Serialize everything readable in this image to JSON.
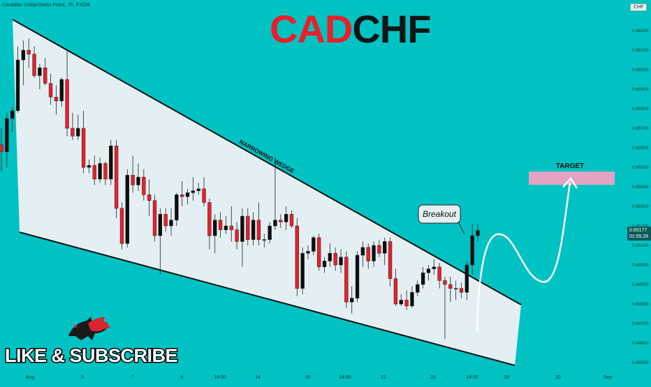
{
  "header": {
    "symbol_info": "Canadian Dollar/Swiss Franc, 7h, FXCM",
    "title_part1": "CAD",
    "title_part2": "CHF",
    "currency_badge": "CHF"
  },
  "price_tag": {
    "price": "0.65177",
    "countdown": "01:55:26"
  },
  "annotations": {
    "wedge_label": "NARROWING WEDGE",
    "breakout_label": "Breakout",
    "target_label": "TARGET"
  },
  "branding": {
    "subscribe_text": "LIKE & SUBSCRIBE",
    "logo_icon": "bull-bear-icon"
  },
  "colors": {
    "background": "#00c2c2",
    "up_candle": "#0d0d0d",
    "down_candle": "#e8202a",
    "wedge_fill": "#e3eff2",
    "target_zone": "#e3a4c3"
  },
  "chart_data": {
    "type": "candlestick",
    "symbol": "CADCHF",
    "timeframe": "7h",
    "ylim": [
      0.645,
      0.6625
    ],
    "y_ticks": [
      "0.66200",
      "0.66100",
      "0.66000",
      "0.65900",
      "0.65800",
      "0.65700",
      "0.65600",
      "0.65500",
      "0.65400",
      "0.65300",
      "0.65200",
      "0.65100",
      "0.65000",
      "0.64900",
      "0.64800",
      "0.64700",
      "0.64600",
      "0.64500"
    ],
    "x_ticks": [
      "Aug",
      "3",
      "7",
      "9",
      "14:00",
      "14",
      "16",
      "14:00",
      "21",
      "23",
      "14:00",
      "28",
      "30",
      "Sep"
    ],
    "candles": [
      {
        "o": 0.65615,
        "h": 0.657,
        "l": 0.6548,
        "c": 0.6558
      },
      {
        "o": 0.6558,
        "h": 0.6578,
        "l": 0.655,
        "c": 0.6575
      },
      {
        "o": 0.6575,
        "h": 0.6581,
        "l": 0.6568,
        "c": 0.6579
      },
      {
        "o": 0.6579,
        "h": 0.6612,
        "l": 0.6578,
        "c": 0.6605
      },
      {
        "o": 0.6605,
        "h": 0.6615,
        "l": 0.6592,
        "c": 0.661
      },
      {
        "o": 0.661,
        "h": 0.6616,
        "l": 0.6601,
        "c": 0.6608
      },
      {
        "o": 0.6608,
        "h": 0.6612,
        "l": 0.6596,
        "c": 0.6597
      },
      {
        "o": 0.6597,
        "h": 0.6603,
        "l": 0.659,
        "c": 0.6601
      },
      {
        "o": 0.6601,
        "h": 0.6606,
        "l": 0.6592,
        "c": 0.6593
      },
      {
        "o": 0.6593,
        "h": 0.6598,
        "l": 0.6582,
        "c": 0.6586
      },
      {
        "o": 0.6586,
        "h": 0.6592,
        "l": 0.6577,
        "c": 0.6584
      },
      {
        "o": 0.6584,
        "h": 0.6596,
        "l": 0.6581,
        "c": 0.6595
      },
      {
        "o": 0.6595,
        "h": 0.661,
        "l": 0.6566,
        "c": 0.657
      },
      {
        "o": 0.657,
        "h": 0.6578,
        "l": 0.6564,
        "c": 0.6566
      },
      {
        "o": 0.6566,
        "h": 0.6577,
        "l": 0.6564,
        "c": 0.657
      },
      {
        "o": 0.657,
        "h": 0.6579,
        "l": 0.6547,
        "c": 0.655
      },
      {
        "o": 0.655,
        "h": 0.6554,
        "l": 0.6547,
        "c": 0.6551
      },
      {
        "o": 0.6551,
        "h": 0.6556,
        "l": 0.6541,
        "c": 0.6544
      },
      {
        "o": 0.6544,
        "h": 0.6555,
        "l": 0.6542,
        "c": 0.6552
      },
      {
        "o": 0.6552,
        "h": 0.6553,
        "l": 0.6541,
        "c": 0.6544
      },
      {
        "o": 0.6544,
        "h": 0.6564,
        "l": 0.6541,
        "c": 0.6561
      },
      {
        "o": 0.6561,
        "h": 0.6564,
        "l": 0.6524,
        "c": 0.6529
      },
      {
        "o": 0.6529,
        "h": 0.6532,
        "l": 0.6508,
        "c": 0.6511
      },
      {
        "o": 0.6511,
        "h": 0.6549,
        "l": 0.6509,
        "c": 0.6546
      },
      {
        "o": 0.6546,
        "h": 0.6556,
        "l": 0.6537,
        "c": 0.6541
      },
      {
        "o": 0.6541,
        "h": 0.6552,
        "l": 0.6538,
        "c": 0.6545
      },
      {
        "o": 0.6545,
        "h": 0.6549,
        "l": 0.6533,
        "c": 0.6536
      },
      {
        "o": 0.6536,
        "h": 0.6544,
        "l": 0.6525,
        "c": 0.6533
      },
      {
        "o": 0.6533,
        "h": 0.6536,
        "l": 0.6512,
        "c": 0.6515
      },
      {
        "o": 0.6515,
        "h": 0.6529,
        "l": 0.6495,
        "c": 0.6526
      },
      {
        "o": 0.6526,
        "h": 0.6529,
        "l": 0.6517,
        "c": 0.652
      },
      {
        "o": 0.652,
        "h": 0.6529,
        "l": 0.6515,
        "c": 0.6523
      },
      {
        "o": 0.6523,
        "h": 0.6537,
        "l": 0.652,
        "c": 0.6536
      },
      {
        "o": 0.6536,
        "h": 0.6543,
        "l": 0.653,
        "c": 0.6535
      },
      {
        "o": 0.6535,
        "h": 0.6539,
        "l": 0.6531,
        "c": 0.6537
      },
      {
        "o": 0.6537,
        "h": 0.6545,
        "l": 0.6533,
        "c": 0.6538
      },
      {
        "o": 0.6538,
        "h": 0.6542,
        "l": 0.6536,
        "c": 0.6539
      },
      {
        "o": 0.6539,
        "h": 0.6545,
        "l": 0.653,
        "c": 0.6532
      },
      {
        "o": 0.6532,
        "h": 0.6534,
        "l": 0.6508,
        "c": 0.6515
      },
      {
        "o": 0.6515,
        "h": 0.6526,
        "l": 0.6506,
        "c": 0.6523
      },
      {
        "o": 0.6523,
        "h": 0.6527,
        "l": 0.6514,
        "c": 0.6518
      },
      {
        "o": 0.6518,
        "h": 0.6525,
        "l": 0.6516,
        "c": 0.652
      },
      {
        "o": 0.652,
        "h": 0.653,
        "l": 0.6512,
        "c": 0.6518
      },
      {
        "o": 0.6518,
        "h": 0.6522,
        "l": 0.6508,
        "c": 0.6512
      },
      {
        "o": 0.6512,
        "h": 0.6529,
        "l": 0.6499,
        "c": 0.6525
      },
      {
        "o": 0.6525,
        "h": 0.6529,
        "l": 0.651,
        "c": 0.6513
      },
      {
        "o": 0.6513,
        "h": 0.6527,
        "l": 0.651,
        "c": 0.6523
      },
      {
        "o": 0.6523,
        "h": 0.6532,
        "l": 0.651,
        "c": 0.6513
      },
      {
        "o": 0.6513,
        "h": 0.6516,
        "l": 0.6509,
        "c": 0.6513
      },
      {
        "o": 0.6513,
        "h": 0.6522,
        "l": 0.6511,
        "c": 0.652
      },
      {
        "o": 0.652,
        "h": 0.6555,
        "l": 0.6518,
        "c": 0.6523
      },
      {
        "o": 0.6523,
        "h": 0.6526,
        "l": 0.6519,
        "c": 0.6522
      },
      {
        "o": 0.6522,
        "h": 0.653,
        "l": 0.6518,
        "c": 0.6526
      },
      {
        "o": 0.6526,
        "h": 0.6528,
        "l": 0.6519,
        "c": 0.652
      },
      {
        "o": 0.652,
        "h": 0.6524,
        "l": 0.6484,
        "c": 0.6488
      },
      {
        "o": 0.6488,
        "h": 0.6509,
        "l": 0.6485,
        "c": 0.6506
      },
      {
        "o": 0.6506,
        "h": 0.651,
        "l": 0.6503,
        "c": 0.6507
      },
      {
        "o": 0.6507,
        "h": 0.6515,
        "l": 0.6505,
        "c": 0.6514
      },
      {
        "o": 0.6514,
        "h": 0.6516,
        "l": 0.6497,
        "c": 0.6499
      },
      {
        "o": 0.6499,
        "h": 0.6504,
        "l": 0.6496,
        "c": 0.6502
      },
      {
        "o": 0.6502,
        "h": 0.6511,
        "l": 0.6499,
        "c": 0.6506
      },
      {
        "o": 0.6506,
        "h": 0.6509,
        "l": 0.6497,
        "c": 0.65
      },
      {
        "o": 0.65,
        "h": 0.6508,
        "l": 0.6496,
        "c": 0.6504
      },
      {
        "o": 0.6504,
        "h": 0.6507,
        "l": 0.6478,
        "c": 0.6481
      },
      {
        "o": 0.6481,
        "h": 0.6489,
        "l": 0.6475,
        "c": 0.6483
      },
      {
        "o": 0.6483,
        "h": 0.6507,
        "l": 0.6481,
        "c": 0.6505
      },
      {
        "o": 0.6505,
        "h": 0.6512,
        "l": 0.6499,
        "c": 0.6509
      },
      {
        "o": 0.6509,
        "h": 0.6511,
        "l": 0.6498,
        "c": 0.6502
      },
      {
        "o": 0.6502,
        "h": 0.6512,
        "l": 0.6499,
        "c": 0.651
      },
      {
        "o": 0.651,
        "h": 0.6513,
        "l": 0.6504,
        "c": 0.6506
      },
      {
        "o": 0.6506,
        "h": 0.6514,
        "l": 0.65,
        "c": 0.6512
      },
      {
        "o": 0.6512,
        "h": 0.6514,
        "l": 0.6489,
        "c": 0.6493
      },
      {
        "o": 0.6493,
        "h": 0.6498,
        "l": 0.6479,
        "c": 0.648
      },
      {
        "o": 0.648,
        "h": 0.6485,
        "l": 0.6479,
        "c": 0.6482
      },
      {
        "o": 0.6482,
        "h": 0.6487,
        "l": 0.6477,
        "c": 0.6479
      },
      {
        "o": 0.6479,
        "h": 0.6489,
        "l": 0.6478,
        "c": 0.6486
      },
      {
        "o": 0.6486,
        "h": 0.6492,
        "l": 0.6484,
        "c": 0.649
      },
      {
        "o": 0.649,
        "h": 0.6499,
        "l": 0.6488,
        "c": 0.6496
      },
      {
        "o": 0.6496,
        "h": 0.65,
        "l": 0.6492,
        "c": 0.6498
      },
      {
        "o": 0.6498,
        "h": 0.6503,
        "l": 0.6495,
        "c": 0.6499
      },
      {
        "o": 0.6499,
        "h": 0.6501,
        "l": 0.6488,
        "c": 0.6492
      },
      {
        "o": 0.6492,
        "h": 0.6494,
        "l": 0.6462,
        "c": 0.649
      },
      {
        "o": 0.649,
        "h": 0.6494,
        "l": 0.6481,
        "c": 0.6488
      },
      {
        "o": 0.6488,
        "h": 0.6492,
        "l": 0.6482,
        "c": 0.6488
      },
      {
        "o": 0.6488,
        "h": 0.6491,
        "l": 0.6483,
        "c": 0.6486
      },
      {
        "o": 0.6486,
        "h": 0.6502,
        "l": 0.6482,
        "c": 0.65
      },
      {
        "o": 0.65,
        "h": 0.6521,
        "l": 0.6495,
        "c": 0.6515
      },
      {
        "o": 0.6515,
        "h": 0.6521,
        "l": 0.6512,
        "c": 0.65177
      }
    ],
    "projection": {
      "type": "arrow_path",
      "description_levels": {
        "start": 0.6468,
        "peak": 0.6515,
        "trough": 0.649,
        "target": 0.6542
      }
    },
    "target_zone": {
      "low": 0.65405,
      "high": 0.6547
    },
    "grid": false
  }
}
